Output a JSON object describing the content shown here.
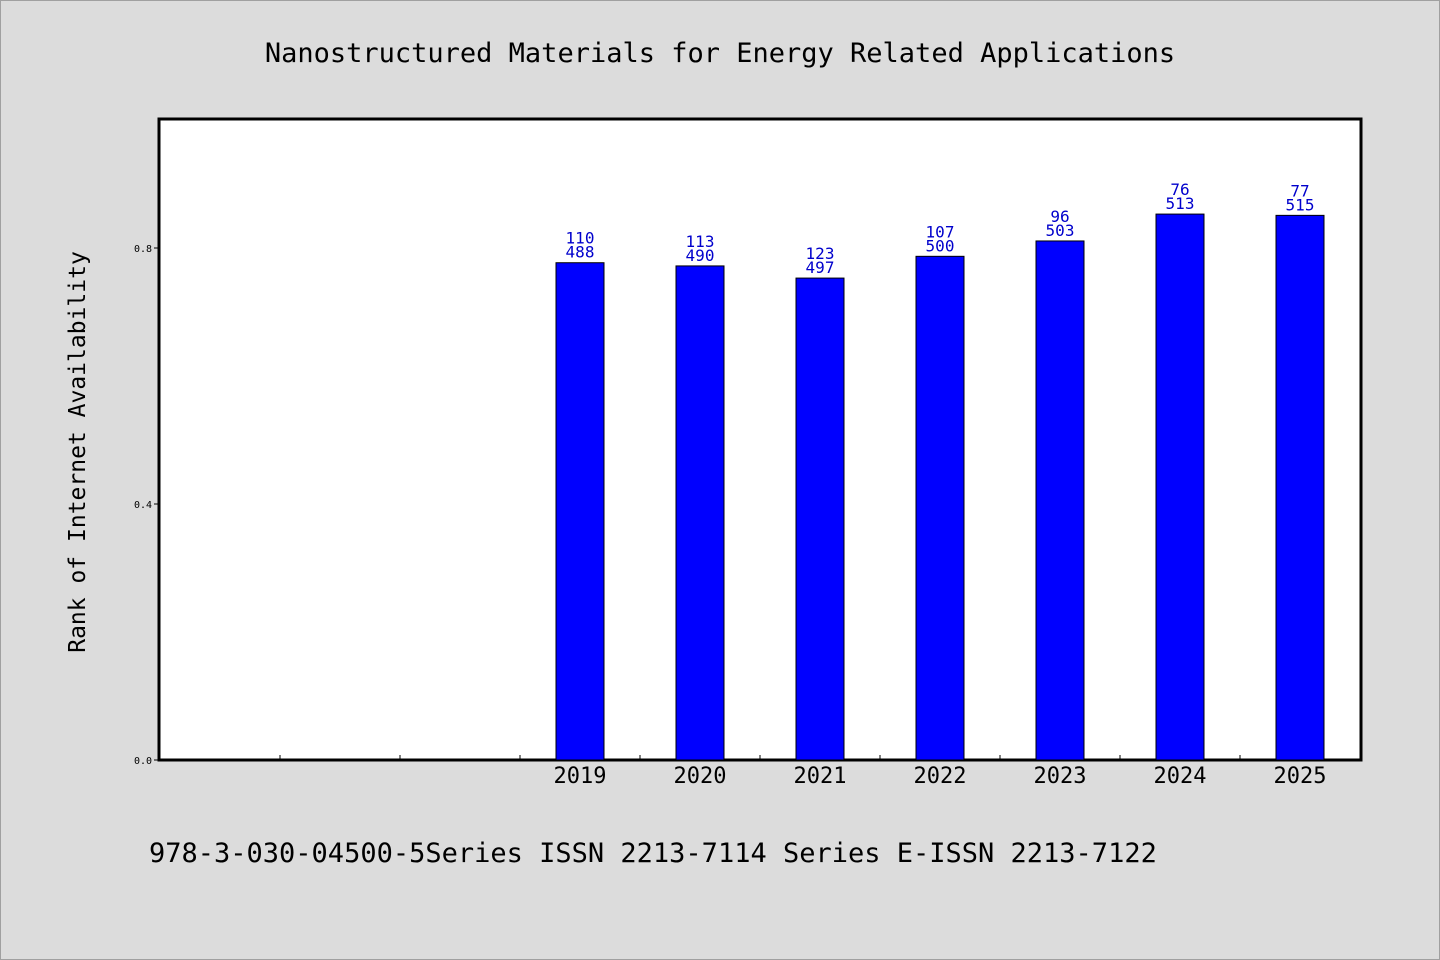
{
  "chart_data": {
    "type": "bar",
    "title": "Nanostructured Materials for Energy Related Applications",
    "ylabel": "Rank of Internet Availability",
    "xlabel": "",
    "footer": "978-3-030-04500-5Series ISSN 2213-7114 Series E-ISSN 2213-7122",
    "categories": [
      "2019",
      "2020",
      "2021",
      "2022",
      "2023",
      "2024",
      "2025"
    ],
    "values": [
      0.777,
      0.772,
      0.753,
      0.787,
      0.811,
      0.853,
      0.851
    ],
    "label_top": [
      "110",
      "113",
      "123",
      "107",
      "96",
      "76",
      "77"
    ],
    "label_bottom": [
      "488",
      "490",
      "497",
      "500",
      "503",
      "513",
      "515"
    ],
    "empty_slots_before": 3,
    "yticks": [
      {
        "value": 0.0,
        "label": "0.0"
      },
      {
        "value": 0.4,
        "label": "0.4"
      },
      {
        "value": 0.8,
        "label": "0.8"
      }
    ],
    "ylim": [
      0,
      1.0
    ],
    "grid": false,
    "colors": {
      "bar": "#0000ff",
      "bar_label": "#0000cc",
      "background": "#dcdcdc",
      "plot_background": "#ffffff"
    }
  }
}
